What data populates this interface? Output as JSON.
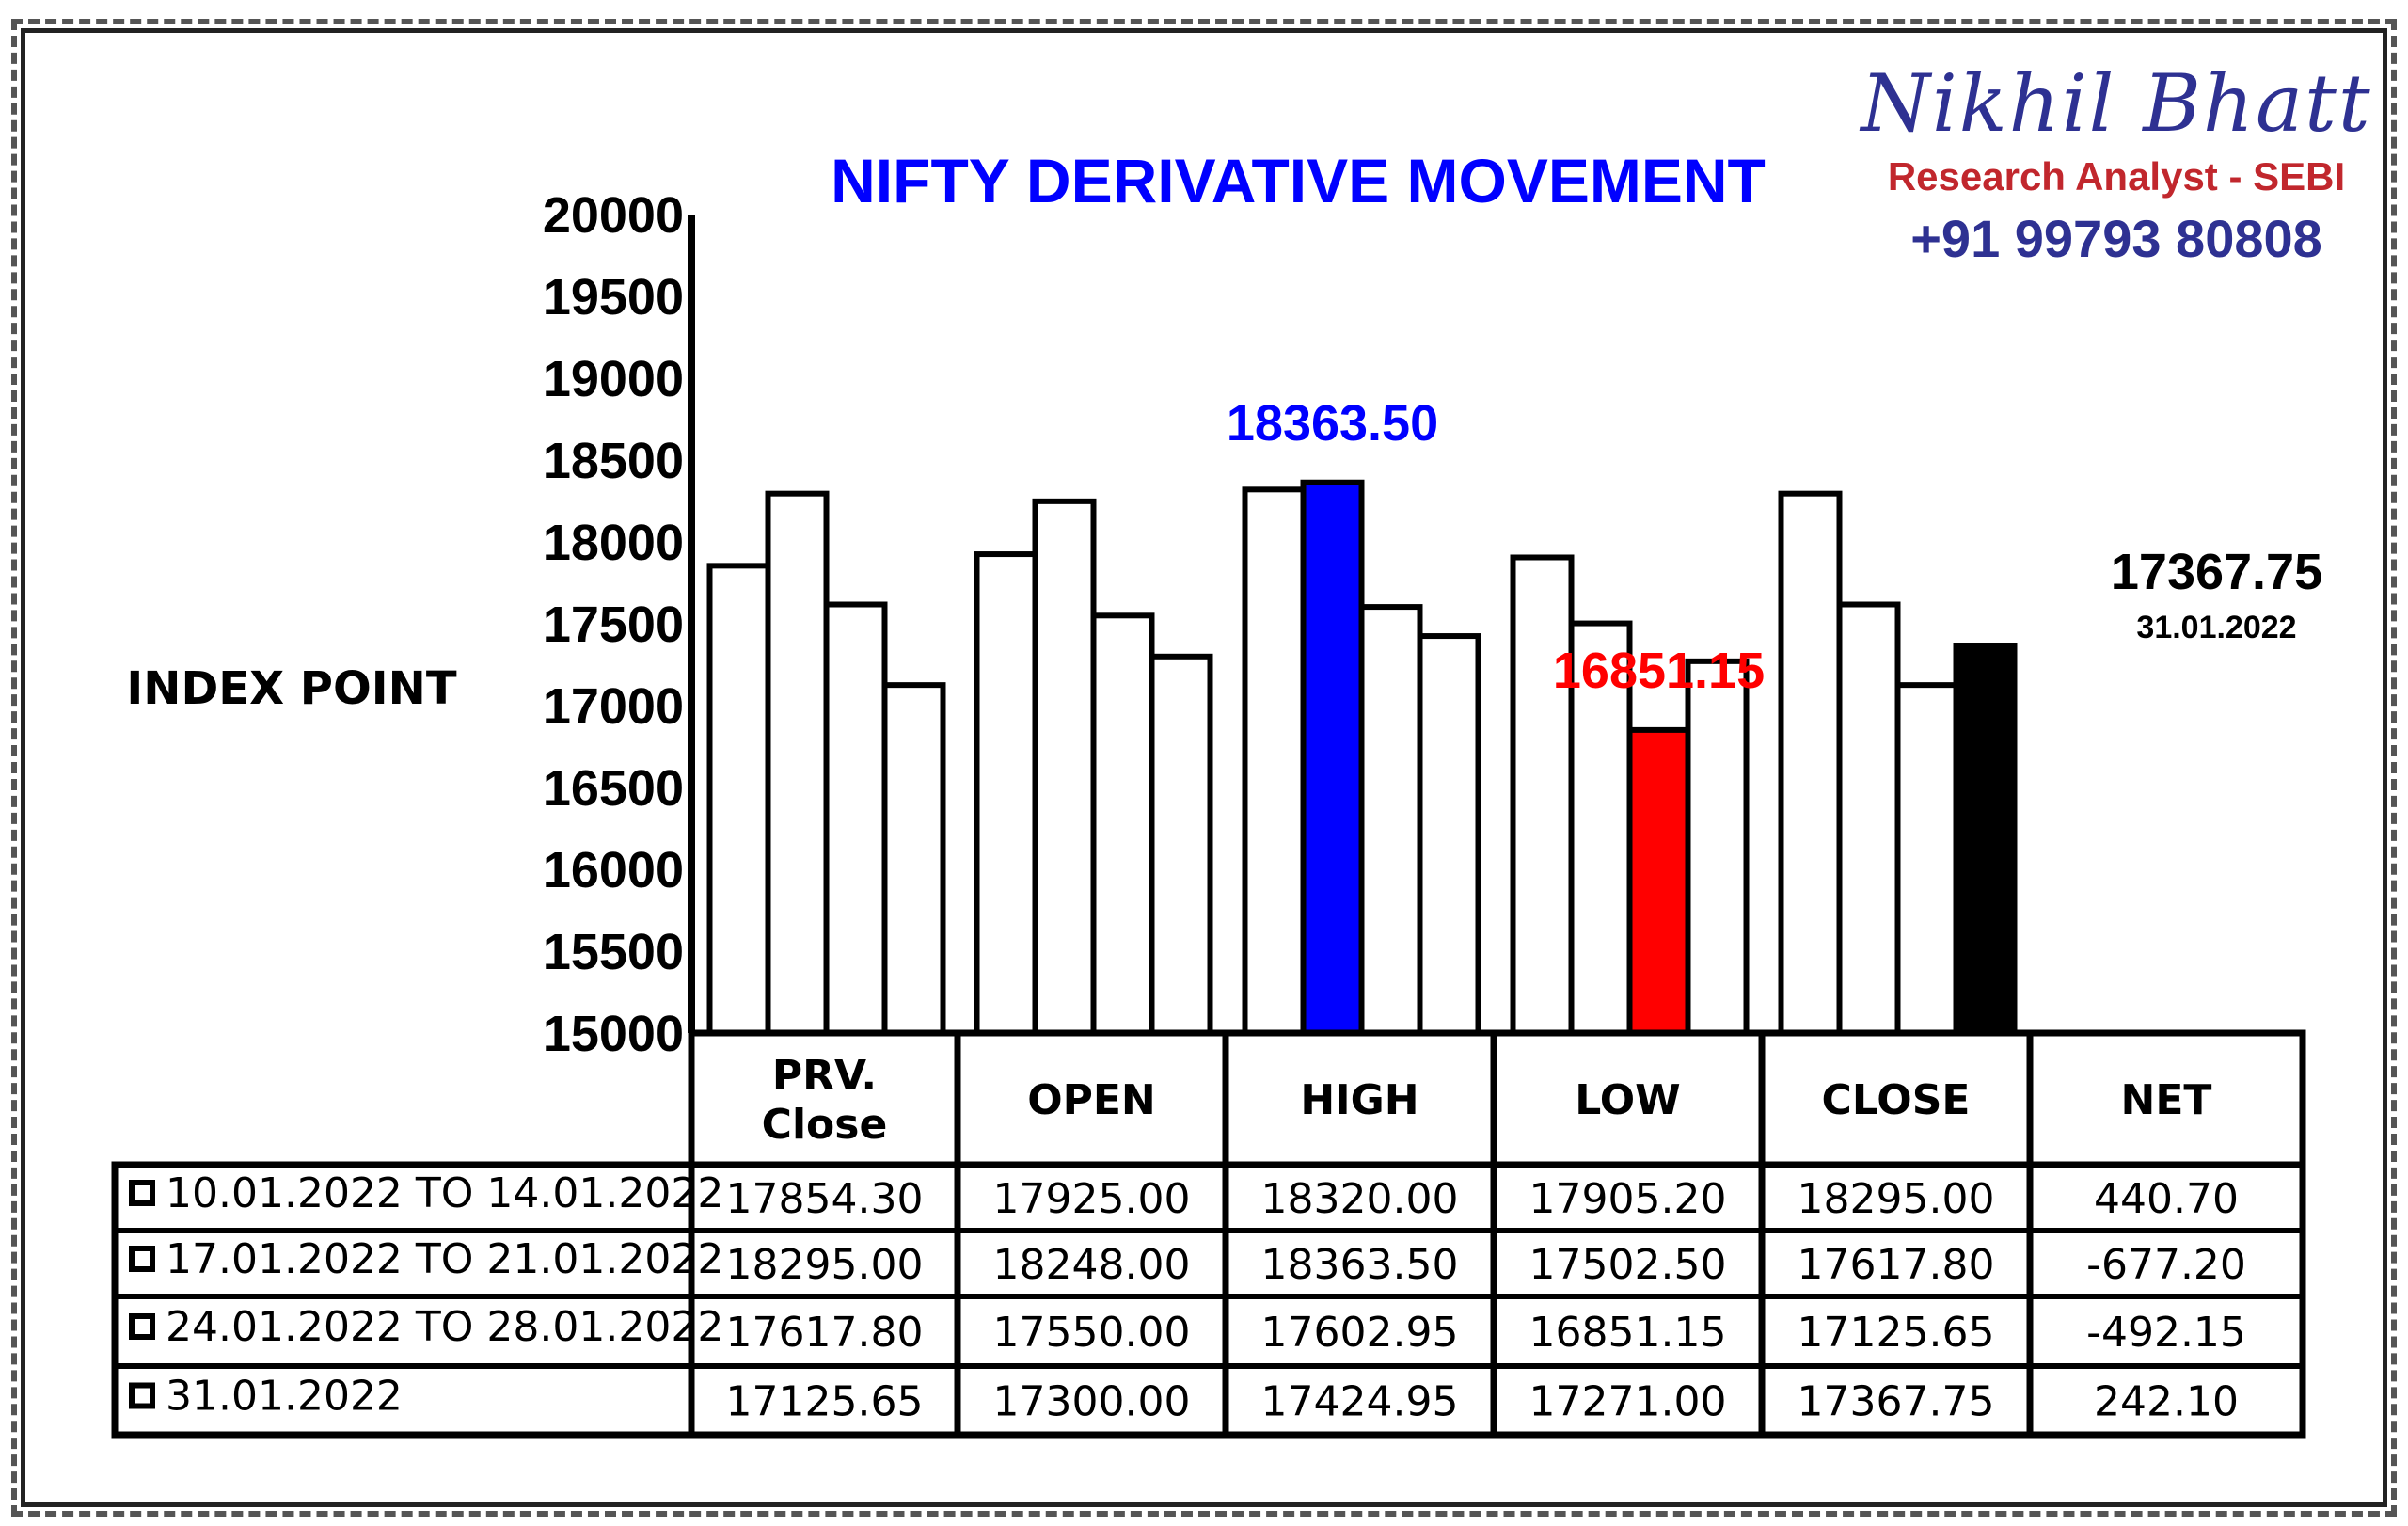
{
  "chart_data": {
    "type": "bar",
    "title": "NIFTY DERIVATIVE MOVEMENT",
    "ylabel": "INDEX POINT",
    "ylim": [
      15000,
      20000
    ],
    "yticks": [
      "20000",
      "19500",
      "19000",
      "18500",
      "18000",
      "17500",
      "17000",
      "16500",
      "16000",
      "15500",
      "15000"
    ],
    "categories": [
      "PRV.\nClose",
      "OPEN",
      "HIGH",
      "LOW",
      "CLOSE"
    ],
    "series": [
      {
        "name": "10.01.2022 TO 14.01.2022",
        "values": [
          17854.3,
          17925.0,
          18320.0,
          17905.2,
          18295.0
        ]
      },
      {
        "name": "17.01.2022 TO 21.01.2022",
        "values": [
          18295.0,
          18248.0,
          18363.5,
          17502.5,
          17617.8
        ]
      },
      {
        "name": "24.01.2022 TO 28.01.2022",
        "values": [
          17617.8,
          17550.0,
          17602.95,
          16851.15,
          17125.65
        ]
      },
      {
        "name": "31.01.2022",
        "values": [
          17125.65,
          17300.0,
          17424.95,
          17271.0,
          17367.75
        ]
      }
    ],
    "highlights": [
      {
        "category": 2,
        "series": 1,
        "color": "#0000ff",
        "label": "18363.50",
        "label_color": "#0000ff"
      },
      {
        "category": 3,
        "series": 2,
        "color": "#ff0000",
        "label": "16851.15",
        "label_color": "#ff0000"
      },
      {
        "category": 4,
        "series": 3,
        "color": "#000000",
        "label": "17367.75",
        "sublabel": "31.01.2022",
        "label_color": "#000000"
      }
    ],
    "title_color": "#0000ff",
    "bar_color": "#ffffff",
    "bar_edge_color": "#000000",
    "grid": false,
    "legend": "table-below"
  },
  "table": {
    "headers": [
      "PRV.\nClose",
      "OPEN",
      "HIGH",
      "LOW",
      "CLOSE",
      "NET"
    ],
    "rows": [
      {
        "label": "10.01.2022 TO 14.01.2022",
        "cells": [
          "17854.30",
          "17925.00",
          "18320.00",
          "17905.20",
          "18295.00",
          "440.70"
        ]
      },
      {
        "label": "17.01.2022 TO 21.01.2022",
        "cells": [
          "18295.00",
          "18248.00",
          "18363.50",
          "17502.50",
          "17617.80",
          "-677.20"
        ]
      },
      {
        "label": "24.01.2022 TO 28.01.2022",
        "cells": [
          "17617.80",
          "17550.00",
          "17602.95",
          "16851.15",
          "17125.65",
          "-492.15"
        ]
      },
      {
        "label": "31.01.2022",
        "cells": [
          "17125.65",
          "17300.00",
          "17424.95",
          "17271.00",
          "17367.75",
          "242.10"
        ]
      }
    ]
  },
  "author": {
    "name": "Nikhil Bhatt",
    "role": "Research Analyst - SEBI",
    "phone": "+91 99793 80808"
  }
}
